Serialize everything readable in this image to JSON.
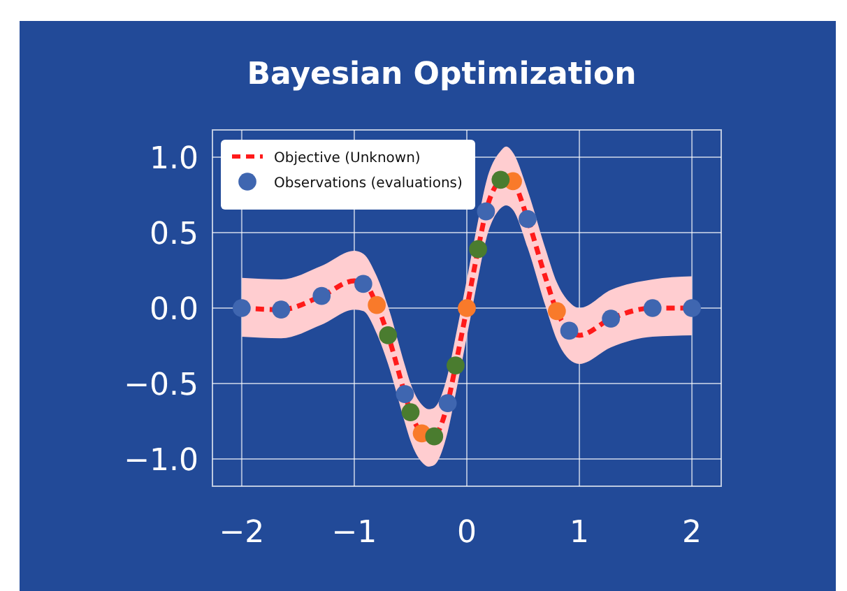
{
  "chart_data": {
    "type": "scatter",
    "title": "Bayesian Optimization",
    "xlim": [
      -2.26,
      2.26
    ],
    "xticks": [
      {
        "value": -2,
        "label": "−2"
      },
      {
        "value": -1,
        "label": "−1"
      },
      0,
      1,
      2
    ],
    "ylim": [
      -1.18,
      1.18
    ],
    "yticks": [
      {
        "value": -1,
        "label": "−1.0"
      },
      {
        "value": -0.5,
        "label": "−0.5"
      },
      {
        "value": 0,
        "label": "0.0"
      },
      {
        "value": 0.5,
        "label": "0.5"
      },
      {
        "value": 1,
        "label": "1.0"
      }
    ],
    "grid": true,
    "legend": "top left",
    "marker": "circle",
    "series": [
      {
        "type": "line",
        "name": "Objective (Unknown)",
        "color": "#ff1a1a",
        "line_style": "dashed",
        "marker": "none",
        "x": [
          -2,
          -1.65,
          -1.29,
          -1.0,
          -0.92,
          -0.8,
          -0.7,
          -0.55,
          -0.5,
          -0.4,
          -0.34,
          -0.29,
          -0.17,
          -0.1,
          0,
          0.1,
          0.17,
          0.3,
          0.35,
          0.41,
          0.54,
          0.7,
          0.8,
          0.91,
          1.0,
          1.28,
          1.65,
          2
        ],
        "values": [
          0,
          -0.01,
          0.08,
          0.18,
          0.17,
          0.02,
          -0.18,
          -0.57,
          -0.69,
          -0.83,
          -0.86,
          -0.85,
          -0.63,
          -0.38,
          0,
          0.39,
          0.64,
          0.85,
          0.87,
          0.84,
          0.59,
          0.2,
          -0.02,
          -0.15,
          -0.18,
          -0.07,
          0,
          0
        ],
        "lower": [
          -0.19,
          -0.2,
          -0.11,
          -0.01,
          -0.02,
          -0.17,
          -0.37,
          -0.76,
          -0.88,
          -1.02,
          -1.05,
          -1.04,
          -0.82,
          -0.57,
          -0.19,
          0.2,
          0.45,
          0.66,
          0.68,
          0.65,
          0.4,
          0.01,
          -0.21,
          -0.34,
          -0.37,
          -0.26,
          -0.19,
          -0.18
        ],
        "upper": [
          0.2,
          0.19,
          0.28,
          0.38,
          0.36,
          0.21,
          0.01,
          -0.38,
          -0.5,
          -0.64,
          -0.67,
          -0.66,
          -0.44,
          -0.19,
          0.19,
          0.58,
          0.83,
          1.04,
          1.07,
          1.03,
          0.78,
          0.39,
          0.17,
          0.04,
          0,
          0.12,
          0.19,
          0.21
        ]
      },
      {
        "name": "Observations (evaluations)",
        "color": "#3f66b0",
        "x": [
          -2,
          -1.65,
          -1.29,
          -0.92,
          -0.55,
          -0.17,
          0.17,
          0.54,
          0.91,
          1.28,
          1.65,
          2
        ],
        "values": [
          0,
          -0.01,
          0.08,
          0.16,
          -0.57,
          -0.63,
          0.64,
          0.59,
          -0.15,
          -0.07,
          0,
          0
        ]
      },
      {
        "color": "#f97a2a",
        "x": [
          -0.8,
          -0.4,
          0,
          0.41,
          0.8
        ],
        "values": [
          0.02,
          -0.83,
          0,
          0.84,
          -0.02
        ]
      },
      {
        "color": "#4a7c2f",
        "x": [
          -0.7,
          -0.5,
          -0.29,
          -0.1,
          0.1,
          0.3
        ],
        "values": [
          -0.18,
          -0.69,
          -0.85,
          -0.38,
          0.39,
          0.85
        ]
      }
    ]
  }
}
